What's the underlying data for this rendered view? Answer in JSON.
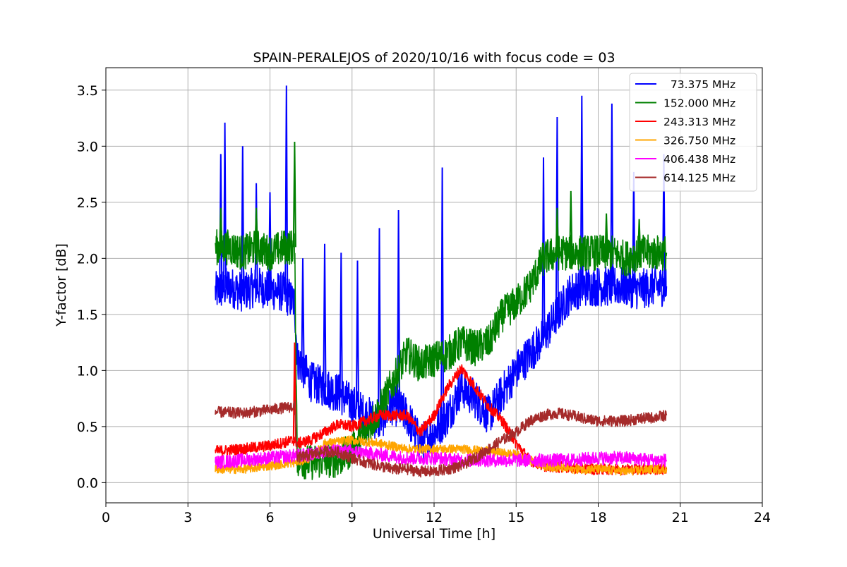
{
  "chart_data": {
    "type": "line",
    "title": "SPAIN-PERALEJOS of 2020/10/16 with focus code = 03",
    "xlabel": "Universal Time [h]",
    "ylabel": "Y-factor [dB]",
    "xlim": [
      0,
      24
    ],
    "ylim": [
      -0.18,
      3.7
    ],
    "xticks": [
      0,
      3,
      6,
      9,
      12,
      15,
      18,
      21,
      24
    ],
    "yticks": [
      0.0,
      0.5,
      1.0,
      1.5,
      2.0,
      2.5,
      3.0,
      3.5
    ],
    "grid": true,
    "legend_position": "top-right",
    "series": [
      {
        "name": "  73.375 MHz",
        "color": "#0000ff",
        "points": [
          [
            4.0,
            1.7
          ],
          [
            4.5,
            1.75
          ],
          [
            5.0,
            1.7
          ],
          [
            5.5,
            1.75
          ],
          [
            6.0,
            1.72
          ],
          [
            6.5,
            1.7
          ],
          [
            6.9,
            1.6
          ],
          [
            7.0,
            1.1
          ],
          [
            7.5,
            0.9
          ],
          [
            8.0,
            0.85
          ],
          [
            8.5,
            0.8
          ],
          [
            9.0,
            0.7
          ],
          [
            9.5,
            0.6
          ],
          [
            10.0,
            0.55
          ],
          [
            10.5,
            0.7
          ],
          [
            11.0,
            0.6
          ],
          [
            11.5,
            0.35
          ],
          [
            12.0,
            0.45
          ],
          [
            12.5,
            0.6
          ],
          [
            13.0,
            0.85
          ],
          [
            13.5,
            0.75
          ],
          [
            14.0,
            0.6
          ],
          [
            14.5,
            0.8
          ],
          [
            15.0,
            1.0
          ],
          [
            15.5,
            1.15
          ],
          [
            16.0,
            1.3
          ],
          [
            16.5,
            1.5
          ],
          [
            17.0,
            1.7
          ],
          [
            17.5,
            1.75
          ],
          [
            18.0,
            1.75
          ],
          [
            18.5,
            1.75
          ],
          [
            19.0,
            1.75
          ],
          [
            19.5,
            1.72
          ],
          [
            20.0,
            1.75
          ],
          [
            20.5,
            1.75
          ]
        ],
        "spikes": [
          [
            4.2,
            2.93
          ],
          [
            4.35,
            3.21
          ],
          [
            5.0,
            3.0
          ],
          [
            5.5,
            2.67
          ],
          [
            6.0,
            2.59
          ],
          [
            6.6,
            3.54
          ],
          [
            7.2,
            2.0
          ],
          [
            8.0,
            2.13
          ],
          [
            8.6,
            2.05
          ],
          [
            9.2,
            1.98
          ],
          [
            10.0,
            2.27
          ],
          [
            10.7,
            2.43
          ],
          [
            12.3,
            2.81
          ],
          [
            16.0,
            2.9
          ],
          [
            16.5,
            3.26
          ],
          [
            17.4,
            3.45
          ],
          [
            18.5,
            3.38
          ],
          [
            19.3,
            2.77
          ],
          [
            20.4,
            2.93
          ]
        ]
      },
      {
        "name": "152.000 MHz",
        "color": "#008000",
        "points": [
          [
            4.0,
            2.1
          ],
          [
            4.5,
            2.1
          ],
          [
            5.0,
            2.05
          ],
          [
            5.5,
            2.1
          ],
          [
            6.0,
            2.05
          ],
          [
            6.5,
            2.1
          ],
          [
            6.9,
            2.1
          ],
          [
            7.0,
            0.2
          ],
          [
            7.5,
            0.18
          ],
          [
            8.0,
            0.2
          ],
          [
            8.5,
            0.2
          ],
          [
            9.0,
            0.3
          ],
          [
            9.5,
            0.45
          ],
          [
            10.0,
            0.65
          ],
          [
            10.5,
            0.9
          ],
          [
            11.0,
            1.15
          ],
          [
            11.5,
            1.05
          ],
          [
            12.0,
            1.1
          ],
          [
            12.5,
            1.15
          ],
          [
            13.0,
            1.25
          ],
          [
            13.5,
            1.2
          ],
          [
            14.0,
            1.25
          ],
          [
            14.5,
            1.5
          ],
          [
            15.0,
            1.6
          ],
          [
            15.5,
            1.75
          ],
          [
            16.0,
            2.0
          ],
          [
            16.5,
            2.05
          ],
          [
            17.0,
            2.05
          ],
          [
            17.5,
            2.05
          ],
          [
            18.0,
            2.05
          ],
          [
            18.5,
            2.05
          ],
          [
            19.0,
            2.0
          ],
          [
            19.5,
            2.05
          ],
          [
            20.0,
            2.05
          ],
          [
            20.5,
            2.05
          ]
        ],
        "spikes": [
          [
            4.2,
            2.45
          ],
          [
            5.5,
            2.45
          ],
          [
            6.9,
            3.04
          ],
          [
            16.5,
            2.45
          ],
          [
            17.0,
            2.6
          ],
          [
            18.3,
            2.4
          ],
          [
            19.5,
            2.35
          ]
        ]
      },
      {
        "name": "243.313 MHz",
        "color": "#ff0000",
        "points": [
          [
            4.0,
            0.28
          ],
          [
            5.0,
            0.3
          ],
          [
            6.0,
            0.33
          ],
          [
            6.9,
            0.38
          ],
          [
            7.0,
            0.35
          ],
          [
            7.5,
            0.38
          ],
          [
            8.0,
            0.45
          ],
          [
            8.5,
            0.52
          ],
          [
            9.0,
            0.5
          ],
          [
            9.5,
            0.55
          ],
          [
            10.0,
            0.6
          ],
          [
            10.5,
            0.6
          ],
          [
            11.0,
            0.6
          ],
          [
            11.5,
            0.45
          ],
          [
            12.0,
            0.6
          ],
          [
            12.5,
            0.85
          ],
          [
            13.0,
            1.02
          ],
          [
            13.5,
            0.85
          ],
          [
            14.0,
            0.68
          ],
          [
            14.5,
            0.55
          ],
          [
            15.0,
            0.35
          ],
          [
            15.5,
            0.2
          ],
          [
            16.0,
            0.15
          ],
          [
            17.0,
            0.13
          ],
          [
            18.0,
            0.12
          ],
          [
            19.0,
            0.12
          ],
          [
            20.0,
            0.12
          ],
          [
            20.5,
            0.12
          ]
        ],
        "spikes": [
          [
            6.9,
            1.25
          ]
        ]
      },
      {
        "name": "326.750 MHz",
        "color": "#ffa500",
        "points": [
          [
            4.0,
            0.12
          ],
          [
            5.0,
            0.12
          ],
          [
            6.0,
            0.15
          ],
          [
            6.9,
            0.18
          ],
          [
            7.5,
            0.22
          ],
          [
            8.0,
            0.35
          ],
          [
            9.0,
            0.38
          ],
          [
            10.0,
            0.35
          ],
          [
            11.0,
            0.3
          ],
          [
            12.0,
            0.3
          ],
          [
            12.5,
            0.3
          ],
          [
            13.0,
            0.3
          ],
          [
            14.0,
            0.28
          ],
          [
            15.0,
            0.25
          ],
          [
            16.0,
            0.15
          ],
          [
            17.0,
            0.12
          ],
          [
            18.0,
            0.12
          ],
          [
            19.0,
            0.1
          ],
          [
            20.0,
            0.12
          ],
          [
            20.5,
            0.12
          ]
        ],
        "spikes": []
      },
      {
        "name": "406.438 MHz",
        "color": "#ff00ff",
        "points": [
          [
            4.0,
            0.18
          ],
          [
            5.0,
            0.2
          ],
          [
            6.0,
            0.22
          ],
          [
            6.9,
            0.24
          ],
          [
            7.5,
            0.25
          ],
          [
            8.0,
            0.28
          ],
          [
            9.0,
            0.28
          ],
          [
            10.0,
            0.25
          ],
          [
            11.0,
            0.22
          ],
          [
            12.0,
            0.22
          ],
          [
            13.0,
            0.2
          ],
          [
            14.0,
            0.2
          ],
          [
            15.0,
            0.2
          ],
          [
            16.0,
            0.2
          ],
          [
            17.0,
            0.2
          ],
          [
            18.0,
            0.22
          ],
          [
            19.0,
            0.22
          ],
          [
            20.0,
            0.2
          ],
          [
            20.5,
            0.2
          ]
        ],
        "spikes": []
      },
      {
        "name": "614.125 MHz",
        "color": "#a52a2a",
        "points": [
          [
            4.0,
            0.63
          ],
          [
            5.0,
            0.62
          ],
          [
            6.0,
            0.65
          ],
          [
            6.9,
            0.68
          ],
          [
            7.0,
            0.22
          ],
          [
            7.5,
            0.25
          ],
          [
            8.0,
            0.28
          ],
          [
            8.5,
            0.27
          ],
          [
            9.0,
            0.22
          ],
          [
            9.5,
            0.18
          ],
          [
            10.0,
            0.15
          ],
          [
            10.5,
            0.12
          ],
          [
            11.0,
            0.12
          ],
          [
            11.5,
            0.1
          ],
          [
            12.0,
            0.1
          ],
          [
            12.5,
            0.12
          ],
          [
            13.0,
            0.15
          ],
          [
            13.5,
            0.22
          ],
          [
            14.0,
            0.3
          ],
          [
            14.5,
            0.38
          ],
          [
            15.0,
            0.45
          ],
          [
            15.5,
            0.55
          ],
          [
            16.0,
            0.6
          ],
          [
            16.5,
            0.62
          ],
          [
            17.0,
            0.6
          ],
          [
            17.5,
            0.57
          ],
          [
            18.0,
            0.55
          ],
          [
            18.5,
            0.55
          ],
          [
            19.0,
            0.55
          ],
          [
            19.5,
            0.57
          ],
          [
            20.0,
            0.58
          ],
          [
            20.5,
            0.6
          ]
        ],
        "spikes": []
      }
    ]
  }
}
